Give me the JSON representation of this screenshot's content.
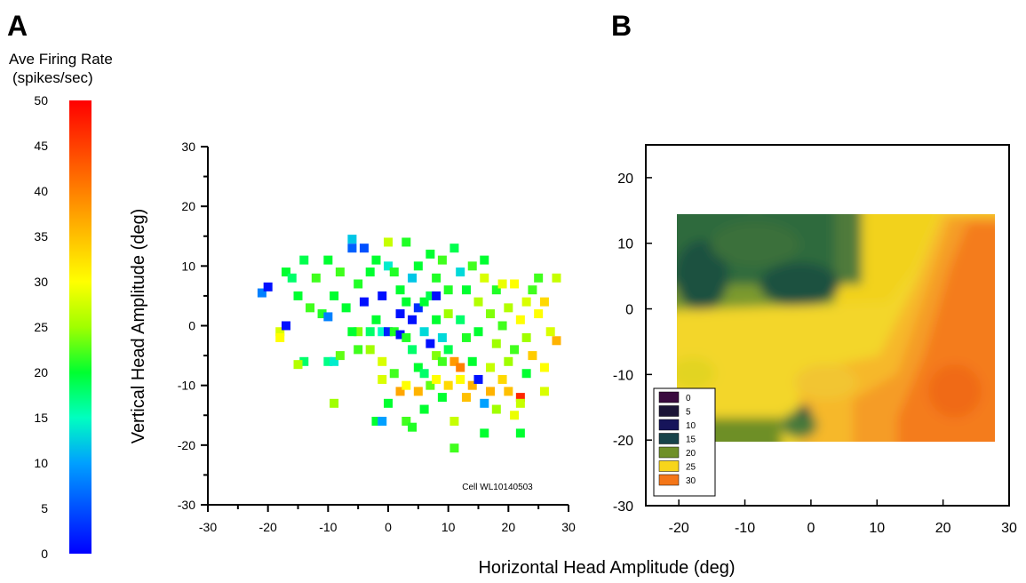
{
  "panel_labels": {
    "a": "A",
    "b": "B"
  },
  "colorbar": {
    "title_line1": "Ave Firing Rate",
    "title_line2": "(spikes/sec)",
    "ticks": [
      "0",
      "5",
      "10",
      "15",
      "20",
      "25",
      "30",
      "35",
      "40",
      "45",
      "50"
    ],
    "range": [
      0,
      50
    ]
  },
  "shared_xlabel": "Horizontal Head Amplitude (deg)",
  "chart_data": [
    {
      "type": "scatter",
      "xlabel": "",
      "ylabel": "Vertical Head Amplitude (deg)",
      "xlim": [
        -30,
        30
      ],
      "ylim": [
        -30,
        30
      ],
      "xticks": [
        "-30",
        "-20",
        "-10",
        "0",
        "10",
        "20",
        "30"
      ],
      "yticks": [
        "-30",
        "-20",
        "-10",
        "0",
        "10",
        "20",
        "30"
      ],
      "annotation": "Cell WL10140503",
      "points": [
        {
          "x": -21,
          "y": 5.5,
          "v": 8
        },
        {
          "x": -20,
          "y": 6.5,
          "v": 1
        },
        {
          "x": -18,
          "y": -1,
          "v": 28
        },
        {
          "x": -18,
          "y": -2,
          "v": 30
        },
        {
          "x": -17,
          "y": 0,
          "v": 1
        },
        {
          "x": -17,
          "y": 9,
          "v": 20
        },
        {
          "x": -16,
          "y": 8,
          "v": 18
        },
        {
          "x": -15,
          "y": 5,
          "v": 20
        },
        {
          "x": -14,
          "y": 11,
          "v": 19
        },
        {
          "x": -14,
          "y": -6,
          "v": 18
        },
        {
          "x": -15,
          "y": -6.5,
          "v": 26
        },
        {
          "x": -13,
          "y": 3,
          "v": 22
        },
        {
          "x": -12,
          "y": 8,
          "v": 22
        },
        {
          "x": -11,
          "y": 2,
          "v": 21
        },
        {
          "x": -10,
          "y": 11,
          "v": 20
        },
        {
          "x": -10,
          "y": -6,
          "v": 17
        },
        {
          "x": -10,
          "y": 1.5,
          "v": 8
        },
        {
          "x": -9,
          "y": -13,
          "v": 25
        },
        {
          "x": -9,
          "y": 5,
          "v": 20
        },
        {
          "x": -9,
          "y": -6,
          "v": 14
        },
        {
          "x": -8,
          "y": -5,
          "v": 23
        },
        {
          "x": -8,
          "y": 9,
          "v": 22
        },
        {
          "x": -7,
          "y": 3,
          "v": 20
        },
        {
          "x": -6,
          "y": 14.5,
          "v": 12
        },
        {
          "x": -6,
          "y": 13,
          "v": 6
        },
        {
          "x": -5,
          "y": 7,
          "v": 21
        },
        {
          "x": -5,
          "y": -1,
          "v": 24
        },
        {
          "x": -5,
          "y": -4,
          "v": 22
        },
        {
          "x": -4,
          "y": 13,
          "v": 5
        },
        {
          "x": -4,
          "y": 4,
          "v": 1
        },
        {
          "x": -3,
          "y": 9,
          "v": 20
        },
        {
          "x": -3,
          "y": -1,
          "v": 18
        },
        {
          "x": -3,
          "y": -4,
          "v": 25
        },
        {
          "x": -2,
          "y": -16,
          "v": 20
        },
        {
          "x": -2,
          "y": 11,
          "v": 20
        },
        {
          "x": -2,
          "y": 1,
          "v": 20
        },
        {
          "x": -1,
          "y": -16,
          "v": 10
        },
        {
          "x": -1,
          "y": -6,
          "v": 28
        },
        {
          "x": -1,
          "y": -1,
          "v": 15
        },
        {
          "x": -1,
          "y": 5,
          "v": 1
        },
        {
          "x": -1,
          "y": -9,
          "v": 28
        },
        {
          "x": 0,
          "y": 10,
          "v": 14
        },
        {
          "x": 0,
          "y": 14,
          "v": 27
        },
        {
          "x": 0,
          "y": -1,
          "v": 2
        },
        {
          "x": 0,
          "y": -13,
          "v": 20
        },
        {
          "x": 1,
          "y": 9,
          "v": 21
        },
        {
          "x": 1,
          "y": -1,
          "v": 21
        },
        {
          "x": 1,
          "y": -8,
          "v": 22
        },
        {
          "x": 2,
          "y": -11,
          "v": 37
        },
        {
          "x": 2,
          "y": 6,
          "v": 20
        },
        {
          "x": 2,
          "y": 2,
          "v": 1
        },
        {
          "x": 2,
          "y": -1.5,
          "v": 1
        },
        {
          "x": 3,
          "y": 14,
          "v": 21
        },
        {
          "x": 3,
          "y": 4,
          "v": 20
        },
        {
          "x": 3,
          "y": -2,
          "v": 21
        },
        {
          "x": 3,
          "y": -10,
          "v": 30
        },
        {
          "x": 3,
          "y": -16,
          "v": 22
        },
        {
          "x": 4,
          "y": 8,
          "v": 12
        },
        {
          "x": 4,
          "y": -4,
          "v": 18
        },
        {
          "x": 4,
          "y": 1,
          "v": 1
        },
        {
          "x": 4,
          "y": -17,
          "v": 21
        },
        {
          "x": 5,
          "y": 10,
          "v": 20
        },
        {
          "x": 5,
          "y": -11,
          "v": 36
        },
        {
          "x": 5,
          "y": 3,
          "v": 3
        },
        {
          "x": 5,
          "y": -7,
          "v": 20
        },
        {
          "x": 6,
          "y": 4,
          "v": 20
        },
        {
          "x": 6,
          "y": -1,
          "v": 13
        },
        {
          "x": 6,
          "y": -8,
          "v": 18
        },
        {
          "x": 6,
          "y": -14,
          "v": 20
        },
        {
          "x": 7,
          "y": 12,
          "v": 20
        },
        {
          "x": 7,
          "y": 5,
          "v": 19
        },
        {
          "x": 7,
          "y": -3,
          "v": 1
        },
        {
          "x": 7,
          "y": -10,
          "v": 23
        },
        {
          "x": 8,
          "y": 8,
          "v": 21
        },
        {
          "x": 8,
          "y": 1,
          "v": 20
        },
        {
          "x": 8,
          "y": -5,
          "v": 24
        },
        {
          "x": 8,
          "y": -9,
          "v": 30
        },
        {
          "x": 8,
          "y": 5,
          "v": 1
        },
        {
          "x": 9,
          "y": 11,
          "v": 22
        },
        {
          "x": 9,
          "y": -2,
          "v": 13
        },
        {
          "x": 9,
          "y": -6,
          "v": 22
        },
        {
          "x": 9,
          "y": -12,
          "v": 20
        },
        {
          "x": 10,
          "y": 6,
          "v": 21
        },
        {
          "x": 10,
          "y": -10,
          "v": 33
        },
        {
          "x": 10,
          "y": 2,
          "v": 25
        },
        {
          "x": 10,
          "y": -4,
          "v": 19
        },
        {
          "x": 11,
          "y": 13,
          "v": 19
        },
        {
          "x": 11,
          "y": -6,
          "v": 38
        },
        {
          "x": 11,
          "y": -16,
          "v": 27
        },
        {
          "x": 11,
          "y": -20.5,
          "v": 22
        },
        {
          "x": 12,
          "y": 9,
          "v": 13
        },
        {
          "x": 12,
          "y": -7,
          "v": 40
        },
        {
          "x": 12,
          "y": 1,
          "v": 18
        },
        {
          "x": 12,
          "y": -9,
          "v": 30
        },
        {
          "x": 13,
          "y": 6,
          "v": 20
        },
        {
          "x": 13,
          "y": -2,
          "v": 21
        },
        {
          "x": 13,
          "y": -12,
          "v": 35
        },
        {
          "x": 14,
          "y": 10,
          "v": 22
        },
        {
          "x": 14,
          "y": -6,
          "v": 20
        },
        {
          "x": 14,
          "y": -10,
          "v": 36
        },
        {
          "x": 15,
          "y": 4,
          "v": 26
        },
        {
          "x": 15,
          "y": -9,
          "v": 1
        },
        {
          "x": 15,
          "y": -1,
          "v": 20
        },
        {
          "x": 16,
          "y": 8,
          "v": 28
        },
        {
          "x": 16,
          "y": -13,
          "v": 10
        },
        {
          "x": 16,
          "y": -18,
          "v": 20
        },
        {
          "x": 16,
          "y": 11,
          "v": 20
        },
        {
          "x": 17,
          "y": 2,
          "v": 24
        },
        {
          "x": 17,
          "y": -11,
          "v": 36
        },
        {
          "x": 17,
          "y": -7,
          "v": 27
        },
        {
          "x": 18,
          "y": 6,
          "v": 21
        },
        {
          "x": 18,
          "y": -3,
          "v": 25
        },
        {
          "x": 18,
          "y": -14,
          "v": 25
        },
        {
          "x": 19,
          "y": 0,
          "v": 22
        },
        {
          "x": 19,
          "y": -9,
          "v": 33
        },
        {
          "x": 19,
          "y": 7,
          "v": 29
        },
        {
          "x": 20,
          "y": -6,
          "v": 25
        },
        {
          "x": 20,
          "y": 3,
          "v": 26
        },
        {
          "x": 20,
          "y": -11,
          "v": 35
        },
        {
          "x": 21,
          "y": 7,
          "v": 30
        },
        {
          "x": 21,
          "y": -15,
          "v": 29
        },
        {
          "x": 21,
          "y": -4,
          "v": 22
        },
        {
          "x": 22,
          "y": 1,
          "v": 30
        },
        {
          "x": 22,
          "y": -12,
          "v": 47
        },
        {
          "x": 22,
          "y": -18,
          "v": 20
        },
        {
          "x": 22,
          "y": -13,
          "v": 27
        },
        {
          "x": 23,
          "y": 4,
          "v": 28
        },
        {
          "x": 23,
          "y": -8,
          "v": 20
        },
        {
          "x": 24,
          "y": 6,
          "v": 22
        },
        {
          "x": 24,
          "y": -5,
          "v": 34
        },
        {
          "x": 25,
          "y": 2,
          "v": 30
        },
        {
          "x": 25,
          "y": 8,
          "v": 22
        },
        {
          "x": 26,
          "y": -7,
          "v": 30
        },
        {
          "x": 26,
          "y": -11,
          "v": 28
        },
        {
          "x": 27,
          "y": -1,
          "v": 28
        },
        {
          "x": 28,
          "y": 8,
          "v": 27
        },
        {
          "x": 28,
          "y": -2.5,
          "v": 36
        },
        {
          "x": 26,
          "y": 4,
          "v": 33
        },
        {
          "x": 23,
          "y": -2,
          "v": 25
        },
        {
          "x": -6,
          "y": -1,
          "v": 20
        }
      ]
    },
    {
      "type": "heatmap",
      "subtype": "contour",
      "xlim": [
        -25,
        30
      ],
      "ylim": [
        -30,
        25
      ],
      "xticks": [
        "-20",
        "-10",
        "0",
        "10",
        "20",
        "30"
      ],
      "yticks": [
        "-30",
        "-20",
        "-10",
        "0",
        "10",
        "20"
      ],
      "data_extent": {
        "x": [
          -20.5,
          28.5
        ],
        "y": [
          -20,
          14.5
        ]
      },
      "legend": {
        "position": "lower-left",
        "levels": [
          "0",
          "5",
          "10",
          "15",
          "20",
          "25",
          "30"
        ],
        "colors": [
          "#3a0b3f",
          "#1b1436",
          "#16145a",
          "#17434a",
          "#6e8f28",
          "#f7d51b",
          "#f47618"
        ]
      }
    }
  ]
}
